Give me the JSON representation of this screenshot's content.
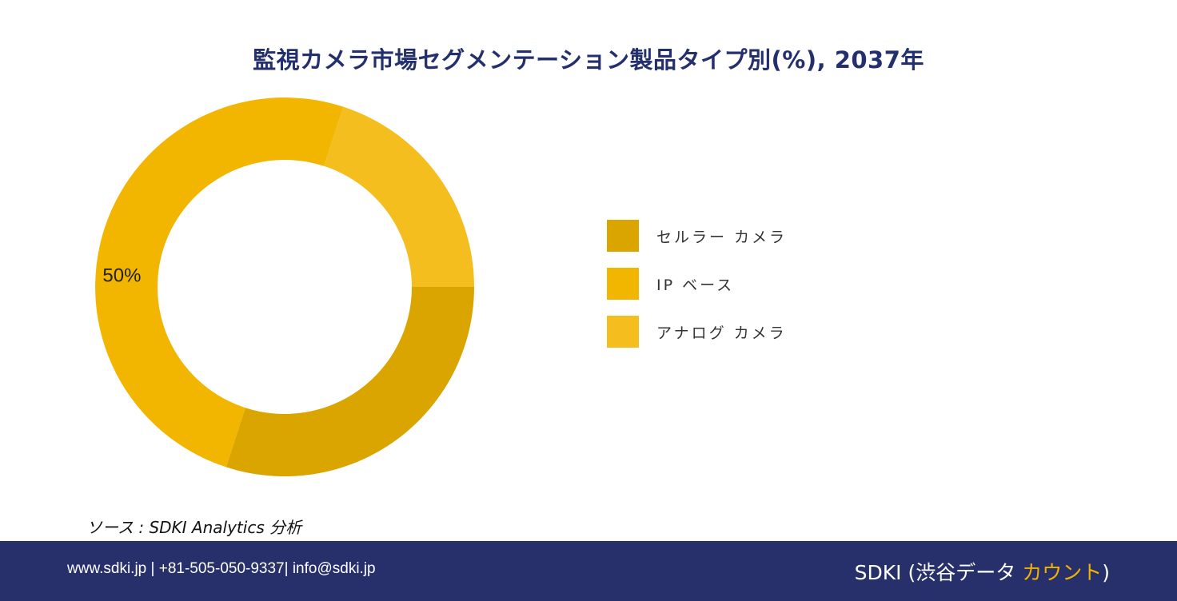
{
  "chart_data": {
    "type": "pie",
    "title": "監視カメラ市場セグメンテーション製品タイプ別(%), 2037年",
    "categories": [
      "セルラー カメラ",
      "IP ベース",
      "アナログ カメラ"
    ],
    "values": [
      30,
      50,
      20
    ],
    "unit": "%",
    "data_labels": [
      "",
      "50%",
      ""
    ],
    "colors": [
      "#dba500",
      "#f2b500",
      "#f4be1e"
    ],
    "donut": true,
    "legend_position": "right"
  },
  "source": "ソース : SDKI Analytics 分析",
  "footer": {
    "contact": "www.sdki.jp | +81-505-050-9337| info@sdki.jp",
    "brand_prefix": "SDKI (渋谷データ ",
    "brand_accent": "カウント",
    "brand_suffix": ")"
  }
}
